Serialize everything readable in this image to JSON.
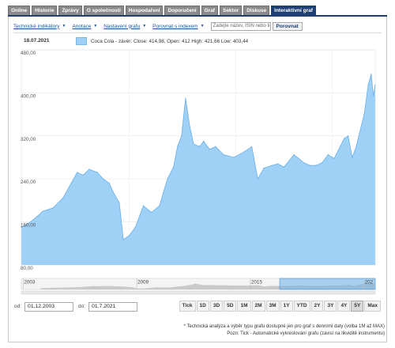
{
  "tabs": [
    {
      "label": "Online"
    },
    {
      "label": "Historie"
    },
    {
      "label": "Zprávy"
    },
    {
      "label": "O společnosti"
    },
    {
      "label": "Hospodaření"
    },
    {
      "label": "Doporučení"
    },
    {
      "label": "Graf"
    },
    {
      "label": "Sektor"
    },
    {
      "label": "Diskuse"
    },
    {
      "label": "Interaktivní graf",
      "active": true
    }
  ],
  "toolbar": {
    "technical": "Technické indikátory",
    "annotations": "Anotace",
    "settings": "Nastavení grafu",
    "compare": "Porovnat s indexem",
    "search_placeholder": "Zadejte název, ISIN nebo ticker",
    "compare_button": "Porovnat"
  },
  "chart_header": {
    "date": "18.07.2021",
    "legend": "Coca Cola - závěr: Close: 414,98, Open: 412 High: 421,66 Low: 403,44",
    "series_color": "#9fd0f5",
    "line_color": "#6ab0ea"
  },
  "chart_data": {
    "type": "area",
    "ylim": [
      80,
      480
    ],
    "yticks": [
      "80,00",
      "160,00",
      "240,00",
      "320,00",
      "400,00",
      "480,00"
    ],
    "x": [
      2003.92,
      2004.3,
      2004.7,
      2005.0,
      2005.5,
      2006.0,
      2006.3,
      2006.7,
      2007.0,
      2007.3,
      2007.7,
      2008.0,
      2008.3,
      2008.5,
      2008.8,
      2009.0,
      2009.3,
      2009.6,
      2010.0,
      2010.4,
      2010.8,
      2011.2,
      2011.5,
      2011.7,
      2011.9,
      2012.1,
      2012.3,
      2012.5,
      2012.8,
      2013.0,
      2013.3,
      2013.6,
      2014.0,
      2014.5,
      2015.0,
      2015.4,
      2015.7,
      2016.0,
      2016.4,
      2016.7,
      2017.0,
      2017.5,
      2018.0,
      2018.3,
      2018.6,
      2018.9,
      2019.2,
      2019.5,
      2019.8,
      2020.0,
      2020.2,
      2020.4,
      2020.6,
      2020.8,
      2021.0,
      2021.2,
      2021.35,
      2021.45,
      2021.55
    ],
    "values": [
      150,
      158,
      170,
      180,
      186,
      205,
      225,
      252,
      247,
      258,
      252,
      240,
      232,
      215,
      196,
      127,
      135,
      150,
      190,
      178,
      190,
      240,
      262,
      300,
      320,
      390,
      340,
      305,
      300,
      310,
      295,
      300,
      285,
      280,
      290,
      300,
      240,
      260,
      265,
      268,
      262,
      285,
      270,
      265,
      265,
      270,
      285,
      278,
      300,
      315,
      320,
      280,
      300,
      330,
      360,
      415,
      435,
      395,
      415
    ],
    "navigator_labels": [
      "2003",
      "2009",
      "2015",
      "202"
    ],
    "navigator_x": [
      2003.0,
      2009.0,
      2015.0,
      2021.0
    ]
  },
  "range": {
    "from_label": "od:",
    "from_value": "01.12.2003",
    "to_label": "do:",
    "to_value": "01.7.2021"
  },
  "zoom_buttons": [
    {
      "label": "Tick"
    },
    {
      "label": "1D"
    },
    {
      "label": "3D"
    },
    {
      "label": "5D"
    },
    {
      "label": "1M"
    },
    {
      "label": "2M"
    },
    {
      "label": "3M"
    },
    {
      "label": "1Y"
    },
    {
      "label": "YTD"
    },
    {
      "label": "2Y"
    },
    {
      "label": "3Y"
    },
    {
      "label": "4Y"
    },
    {
      "label": "5Y",
      "active": true
    },
    {
      "label": "Max"
    }
  ],
  "footnotes": [
    "* Technická analýza a výběr typu grafu dostupné jen pro graf s denními daty (volba 1M až MAX)",
    "Pozn: Tick - Automatické vykreslování grafu (závisí na likviditě instrumentu)"
  ]
}
